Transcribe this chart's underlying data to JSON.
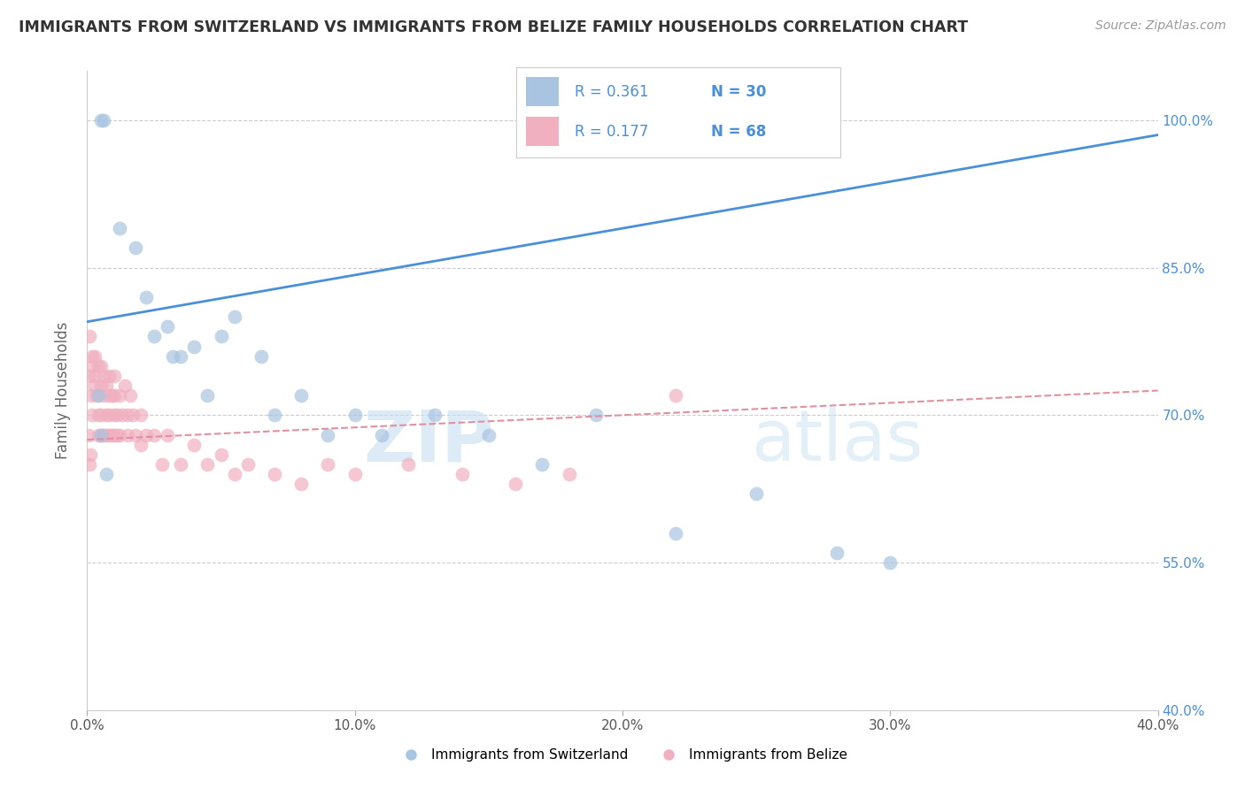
{
  "title": "IMMIGRANTS FROM SWITZERLAND VS IMMIGRANTS FROM BELIZE FAMILY HOUSEHOLDS CORRELATION CHART",
  "source": "Source: ZipAtlas.com",
  "ylabel": "Family Households",
  "xlabel_ticks": [
    "0.0%",
    "10.0%",
    "20.0%",
    "30.0%",
    "40.0%"
  ],
  "ylabel_ticks": [
    "40.0%",
    "55.0%",
    "70.0%",
    "85.0%",
    "100.0%"
  ],
  "xlim": [
    0.0,
    40.0
  ],
  "ylim": [
    40.0,
    105.0
  ],
  "r_switzerland": 0.361,
  "n_switzerland": 30,
  "r_belize": 0.177,
  "n_belize": 68,
  "color_switzerland": "#a8c4e0",
  "color_belize": "#f0b0c0",
  "line_color_switzerland": "#4a90d9",
  "line_color_belize": "#e07090",
  "line_dash_color": "#e090a0",
  "watermark_zip": "ZIP",
  "watermark_atlas": "atlas",
  "background_color": "#ffffff",
  "grid_color": "#cccccc",
  "sw_line_x0": 0.0,
  "sw_line_y0": 79.5,
  "sw_line_x1": 40.0,
  "sw_line_y1": 98.5,
  "bz_line_x0": 0.0,
  "bz_line_y0": 67.5,
  "bz_line_x1": 40.0,
  "bz_line_y1": 72.5,
  "switzerland_x": [
    0.5,
    0.6,
    1.2,
    1.8,
    2.2,
    2.5,
    3.0,
    3.2,
    3.5,
    4.0,
    4.5,
    5.0,
    5.5,
    6.5,
    7.0,
    8.0,
    9.0,
    10.0,
    11.0,
    13.0,
    15.0,
    17.0,
    19.0,
    22.0,
    25.0,
    28.0,
    30.0,
    0.4,
    0.5,
    0.7
  ],
  "switzerland_y": [
    100.0,
    100.0,
    89.0,
    87.0,
    82.0,
    78.0,
    79.0,
    76.0,
    76.0,
    77.0,
    72.0,
    78.0,
    80.0,
    76.0,
    70.0,
    72.0,
    68.0,
    70.0,
    68.0,
    70.0,
    68.0,
    65.0,
    70.0,
    58.0,
    62.0,
    56.0,
    55.0,
    72.0,
    68.0,
    64.0
  ],
  "belize_x": [
    0.1,
    0.1,
    0.15,
    0.2,
    0.2,
    0.2,
    0.25,
    0.3,
    0.3,
    0.35,
    0.4,
    0.4,
    0.4,
    0.5,
    0.5,
    0.5,
    0.5,
    0.6,
    0.6,
    0.6,
    0.7,
    0.7,
    0.7,
    0.8,
    0.8,
    0.8,
    0.8,
    0.9,
    0.9,
    1.0,
    1.0,
    1.0,
    1.0,
    1.1,
    1.1,
    1.2,
    1.2,
    1.3,
    1.4,
    1.5,
    1.5,
    1.6,
    1.7,
    1.8,
    2.0,
    2.0,
    2.2,
    2.5,
    2.8,
    3.0,
    3.5,
    4.0,
    4.5,
    5.0,
    5.5,
    6.0,
    7.0,
    8.0,
    9.0,
    10.0,
    12.0,
    14.0,
    16.0,
    18.0,
    0.05,
    0.08,
    0.12,
    22.0
  ],
  "belize_y": [
    74.0,
    78.0,
    72.0,
    75.0,
    70.0,
    76.0,
    73.0,
    74.0,
    76.0,
    72.0,
    75.0,
    70.0,
    68.0,
    73.0,
    70.0,
    68.0,
    75.0,
    72.0,
    68.0,
    74.0,
    70.0,
    73.0,
    68.0,
    72.0,
    68.0,
    74.0,
    70.0,
    72.0,
    68.0,
    70.0,
    68.0,
    72.0,
    74.0,
    70.0,
    68.0,
    72.0,
    68.0,
    70.0,
    73.0,
    70.0,
    68.0,
    72.0,
    70.0,
    68.0,
    67.0,
    70.0,
    68.0,
    68.0,
    65.0,
    68.0,
    65.0,
    67.0,
    65.0,
    66.0,
    64.0,
    65.0,
    64.0,
    63.0,
    65.0,
    64.0,
    65.0,
    64.0,
    63.0,
    64.0,
    68.0,
    65.0,
    66.0,
    72.0
  ]
}
